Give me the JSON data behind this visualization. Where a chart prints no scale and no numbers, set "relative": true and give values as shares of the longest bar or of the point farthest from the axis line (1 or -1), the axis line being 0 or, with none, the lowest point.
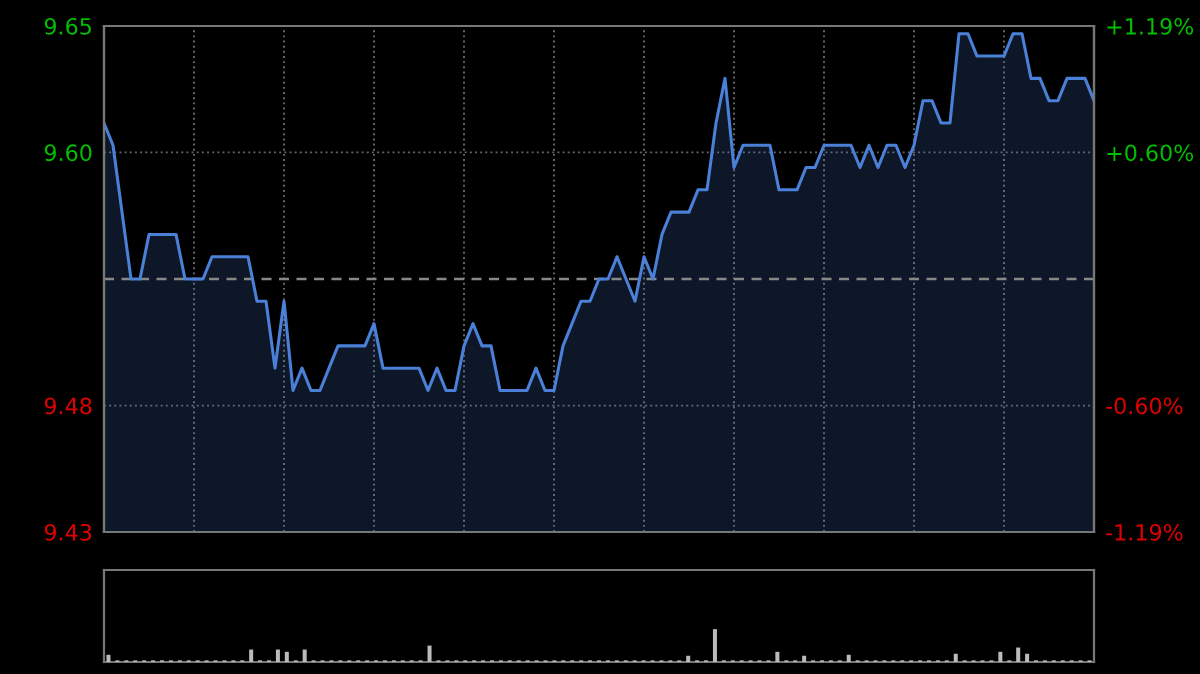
{
  "chart_data": [
    {
      "type": "area",
      "categories": [
        null,
        null,
        null,
        null,
        null,
        null,
        null,
        null,
        null,
        null,
        null,
        null,
        null,
        null,
        null,
        null,
        null,
        null,
        null,
        null,
        null,
        null,
        null,
        null,
        null,
        null,
        null,
        null,
        null,
        null,
        null,
        null,
        null,
        null,
        null,
        null,
        null,
        null,
        null,
        null,
        null,
        null,
        null,
        null,
        null,
        null,
        null,
        null,
        null,
        null,
        null,
        null,
        null,
        null,
        null,
        null,
        null,
        null,
        null,
        null,
        null,
        null,
        null,
        null,
        null,
        null,
        null,
        null,
        null,
        null,
        null,
        null,
        null,
        null,
        null,
        null,
        null,
        null,
        null,
        null,
        null,
        null,
        null,
        null,
        null,
        null,
        null,
        null,
        null,
        null,
        null,
        null,
        null,
        null,
        null,
        null,
        null,
        null,
        null,
        null,
        null,
        null,
        null,
        null,
        null,
        null,
        null,
        null,
        null,
        null,
        null
      ],
      "series": [
        {
          "color": "#4a80d8",
          "values": [
            9.61,
            9.6,
            9.57,
            9.54,
            9.54,
            9.56,
            9.56,
            9.56,
            9.56,
            9.54,
            9.54,
            9.54,
            9.55,
            9.55,
            9.55,
            9.55,
            9.55,
            9.53,
            9.53,
            9.5,
            9.53,
            9.49,
            9.5,
            9.49,
            9.49,
            9.5,
            9.51,
            9.51,
            9.51,
            9.51,
            9.52,
            9.5,
            9.5,
            9.5,
            9.5,
            9.5,
            9.49,
            9.5,
            9.49,
            9.49,
            9.51,
            9.52,
            9.51,
            9.51,
            9.49,
            9.49,
            9.49,
            9.49,
            9.5,
            9.49,
            9.49,
            9.51,
            9.52,
            9.53,
            9.53,
            9.54,
            9.54,
            9.55,
            9.54,
            9.53,
            9.55,
            9.54,
            9.56,
            9.57,
            9.57,
            9.57,
            9.58,
            9.58,
            9.61,
            9.63,
            9.59,
            9.6,
            9.6,
            9.6,
            9.6,
            9.58,
            9.58,
            9.58,
            9.59,
            9.59,
            9.6,
            9.6,
            9.6,
            9.6,
            9.59,
            9.6,
            9.59,
            9.6,
            9.6,
            9.59,
            9.6,
            9.62,
            9.62,
            9.61,
            9.61,
            9.65,
            9.65,
            9.64,
            9.64,
            9.64,
            9.64,
            9.65,
            9.65,
            9.63,
            9.63,
            9.62,
            9.62,
            9.63,
            9.63,
            9.63,
            9.62
          ]
        }
      ],
      "ylim": [
        9.4265,
        9.6535
      ],
      "yticks": [
        {
          "value": 9.4265,
          "label": "9.43"
        },
        {
          "value": 9.4832,
          "label": "9.48"
        },
        {
          "value": 9.5968,
          "label": "9.60"
        },
        {
          "value": 9.6535,
          "label": "9.65"
        }
      ],
      "y2lim": [
        -1.19,
        1.19
      ],
      "y2ticks": [
        {
          "value": -1.19,
          "label": "-1.19%"
        },
        {
          "value": -0.595,
          "label": "-0.60%"
        },
        {
          "value": 0.595,
          "label": "+0.60%"
        },
        {
          "value": 1.19,
          "label": "+1.19%"
        }
      ],
      "ref_lines": [
        {
          "axis": "y",
          "value": 9.54,
          "label": null,
          "line_style": "dashed",
          "color": "#888888"
        }
      ],
      "grid": true,
      "tick_labels": "y"
    },
    {
      "type": "bar",
      "relative": true,
      "categories": [
        null,
        null,
        null,
        null,
        null,
        null,
        null,
        null,
        null,
        null,
        null,
        null,
        null,
        null,
        null,
        null,
        null,
        null,
        null,
        null,
        null,
        null,
        null,
        null,
        null,
        null,
        null,
        null,
        null,
        null,
        null,
        null,
        null,
        null,
        null,
        null,
        null,
        null,
        null,
        null,
        null,
        null,
        null,
        null,
        null,
        null,
        null,
        null,
        null,
        null,
        null,
        null,
        null,
        null,
        null,
        null,
        null,
        null,
        null,
        null,
        null,
        null,
        null,
        null,
        null,
        null,
        null,
        null,
        null,
        null,
        null,
        null,
        null,
        null,
        null,
        null,
        null,
        null,
        null,
        null,
        null,
        null,
        null,
        null,
        null,
        null,
        null,
        null,
        null,
        null,
        null,
        null,
        null,
        null,
        null,
        null,
        null,
        null,
        null,
        null,
        null,
        null,
        null,
        null,
        null,
        null,
        null,
        null,
        null,
        null,
        null
      ],
      "series": [
        {
          "color": "#bbbbbb",
          "values": [
            0.22,
            0.05,
            0.05,
            0.05,
            0.05,
            0.05,
            0.05,
            0.05,
            0.05,
            0.05,
            0.05,
            0.05,
            0.05,
            0.05,
            0.05,
            0.05,
            0.38,
            0.05,
            0.05,
            0.38,
            0.31,
            0.05,
            0.38,
            0.05,
            0.05,
            0.05,
            0.05,
            0.05,
            0.05,
            0.05,
            0.05,
            0.05,
            0.05,
            0.05,
            0.05,
            0.05,
            0.5,
            0.05,
            0.05,
            0.05,
            0.05,
            0.05,
            0.05,
            0.05,
            0.05,
            0.05,
            0.05,
            0.05,
            0.05,
            0.05,
            0.05,
            0.05,
            0.05,
            0.05,
            0.05,
            0.05,
            0.05,
            0.05,
            0.05,
            0.05,
            0.05,
            0.05,
            0.05,
            0.05,
            0.05,
            0.19,
            0.05,
            0.05,
            1,
            0.05,
            0.05,
            0.05,
            0.05,
            0.05,
            0.05,
            0.31,
            0.05,
            0.05,
            0.19,
            0.05,
            0.05,
            0.05,
            0.05,
            0.22,
            0.05,
            0.05,
            0.05,
            0.05,
            0.05,
            0.05,
            0.05,
            0.05,
            0.05,
            0.05,
            0.05,
            0.25,
            0.05,
            0.05,
            0.05,
            0.05,
            0.31,
            0.05,
            0.44,
            0.25,
            0.05,
            0.05,
            0.05,
            0.05,
            0.05,
            0.05,
            0.05
          ]
        }
      ],
      "tick_labels": false
    }
  ]
}
